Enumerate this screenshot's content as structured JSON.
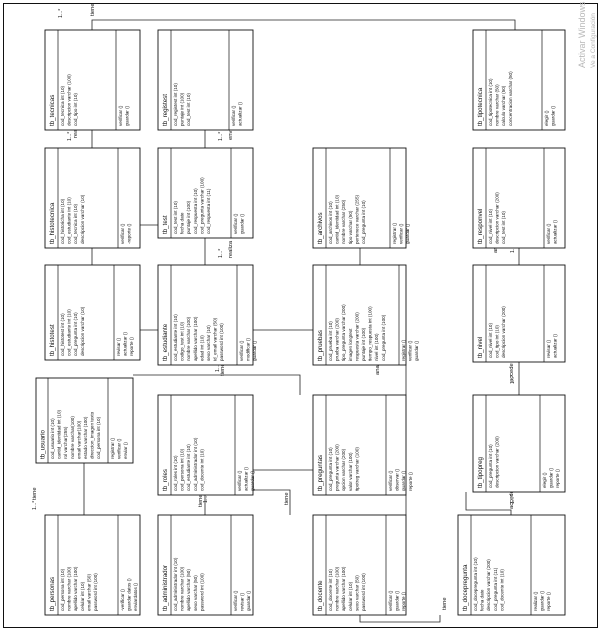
{
  "watermark": {
    "line1": "Activar Windows",
    "line2": "Ve a Configuración"
  },
  "tables": [
    {
      "name": "tb_tecnicas",
      "attrs": [
        "cod_tecnica int (10)",
        "descripcion varchar (100)",
        "cod_tipo int (10)"
      ],
      "methods": [
        "verificar ()",
        "guardar ()"
      ]
    },
    {
      "name": "tb_registest",
      "attrs": [
        "cod_registest int (10)",
        "puntaje int (100)",
        "cod_test int (10)"
      ],
      "methods": [
        "verificar ()",
        "actualizar ()"
      ]
    },
    {
      "name": "tb_tipotecnica",
      "attrs": [
        "cod_tipotecnica int (10)",
        "nombre varchar (50)",
        "calculo varchar (50)",
        "concentracion varchar (50)"
      ],
      "methods": [
        "elegir ()",
        "guardar ()"
      ]
    },
    {
      "name": "tb_histotecnica",
      "attrs": [
        "cod_historicha int (10)",
        "cod_estudiante int (10)",
        "cod_tecnica int (10)",
        "descripcion varchar (10)"
      ],
      "methods": [
        "verificar ()",
        "-reporte ()"
      ]
    },
    {
      "name": "tb_test",
      "attrs": [
        "cod_test int (10)",
        "fecha date",
        "puntaje int (100)",
        "cod_respuesta int (10)",
        "cod_pregunta varchar (100)",
        "cod_respuesta int (11)"
      ],
      "methods": [
        "verificar ()",
        "guardar ()"
      ]
    },
    {
      "name": "tb_archivos",
      "attrs": [
        "cod_archivos int (10)",
        "cantid_identidad int (10)",
        "nombre varchar (250)",
        "tipo varchar (50)",
        "pertenece varchar (255)",
        "cod_pregunta int (10)"
      ],
      "methods": [
        "registrar ()",
        "verificar ()",
        "guardar ()"
      ]
    },
    {
      "name": "tb_responvel",
      "attrs": [
        "cod_nivel int (10)",
        "descripcion varchar (200)",
        "cod_test int (10)"
      ],
      "methods": [
        "verificar ()",
        "actualizar ()"
      ]
    },
    {
      "name": "tb_histotest",
      "attrs": [
        "cod_histotest int (10)",
        "cod_estudiante int (10)",
        "cod_pregunta int (10)",
        "descripcion varchar (10)"
      ],
      "methods": [
        "revisar ()",
        "actualizar ()",
        "reporte ()"
      ]
    },
    {
      "name": "tb_estudiante",
      "attrs": [
        "cod_estudiante int (10)",
        "codigo_test int (10)",
        "nombre varchar (100)",
        "apellido varchar (100)",
        "edad int (10)",
        "sexo varchar (10)",
        "id_email varchar (50)",
        "password int (100)"
      ],
      "methods": [
        "verificar ()",
        "modificar ()",
        "guardar ()"
      ]
    },
    {
      "name": "tb_pruebas",
      "attrs": [
        "cod_prueba int (10)",
        "prueba varchar (200)",
        "tipo_pregunta varchar (200)",
        "imagen longtext",
        "respuesta varchar (200)",
        "puntaje int (100)",
        "tiempo_respuesta int (100)",
        "nivel int (100)",
        "cod_pregunta int (100)"
      ],
      "methods": [
        "registrar ()",
        "verificar ()",
        "guardar ()"
      ]
    },
    {
      "name": "tb_nivel",
      "attrs": [
        "cod_nivel int (10)",
        "cod_tipo int (10)",
        "descripcion varchar (200)"
      ],
      "methods": [
        "revisar ()",
        "actualizar ()"
      ]
    },
    {
      "name": "tb_usuario",
      "attrs": [
        "cod_usuario int (10)",
        "cantid_identidad int (10)",
        "rol varchar(255)",
        "nombre varchar(100)",
        "email varchar(100)",
        "estado varchar (100)",
        "direccion_imagen texto",
        "cod_persona int (10)"
      ],
      "methods": [
        "registrar ()",
        "verificar ()",
        "enviar ()"
      ]
    },
    {
      "name": "tb_roles",
      "attrs": [
        "cod_roles int (10)",
        "cod_persona int (10)",
        "cod_estudiante int (10)",
        "cod_administrador int (10)",
        "cod_docente int (10)"
      ],
      "methods": [
        "verificar ()",
        "actualizar ()",
        "guardar ()"
      ]
    },
    {
      "name": "tb_preguntas",
      "attrs": [
        "cod_pregunta int (10)",
        "pregunta varchar (200)",
        "opcion varchar (200)",
        "valor varchar (100)",
        "tipotreg varchar (100)"
      ],
      "methods": [
        "verificar ()",
        "observar ()",
        "guardar ()",
        "reporte ()"
      ]
    },
    {
      "name": "tb_tipopreg",
      "attrs": [
        "cod_pregunta int (10)",
        "descripcion varchar (200)"
      ],
      "methods": [
        "elegir ()",
        "guardar ()",
        "reporte ()"
      ]
    },
    {
      "name": "tb_personas",
      "attrs": [
        "cod_persona int (10)",
        "nombre varchar (100)",
        "apellido varchar (100)",
        "celular int (10)",
        "email varchar (50)",
        "password int (100)"
      ],
      "methods": [
        "-verificar ()",
        "guardar datos ()",
        "enviardatos ()"
      ]
    },
    {
      "name": "tb_administrador",
      "attrs": [
        "cod_administrador int (10)",
        "nombre varchar (100)",
        "apellido varchar (50)",
        "sexo varchar (50)",
        "password int (100)"
      ],
      "methods": [
        "verificar ()",
        "revisar ()",
        "guardar ()"
      ]
    },
    {
      "name": "tb_docente",
      "attrs": [
        "cod_docente int (10)",
        "nombre varchar (100)",
        "apellido varchar (100)",
        "celular int (10)",
        "sexo varchar (50)",
        "password int (100)"
      ],
      "methods": [
        "verificar ()",
        "guardar ()",
        "reporte ()"
      ]
    },
    {
      "name": "tb_docepregunta",
      "attrs": [
        "cod_docepregunta int (10)",
        "fecha date",
        "descripcion varchar (200)",
        "cod_pregunta int (11)",
        "cod_docente int (10)"
      ],
      "methods": [
        "realizar ()",
        "guardar ()",
        "reporte ()"
      ]
    }
  ],
  "relations": [
    {
      "label": "tiene",
      "mult": "1...*"
    },
    {
      "label": "realiza",
      "mult": "1...*"
    },
    {
      "label": "envia",
      "mult": "1...*"
    },
    {
      "label": "enviar",
      "mult": ""
    },
    {
      "label": "realiza",
      "mult": "1...*"
    },
    {
      "label": "tiene",
      "mult": "1...*"
    },
    {
      "label": "tiene",
      "mult": ""
    },
    {
      "label": "analiza",
      "mult": "1...*"
    },
    {
      "label": "analiza",
      "mult": ""
    },
    {
      "label": "accede",
      "mult": "1...*"
    },
    {
      "label": "tiene",
      "mult": "1...*"
    },
    {
      "label": "tiene",
      "mult": ""
    },
    {
      "label": "accede",
      "mult": "1...*"
    },
    {
      "label": "tiene",
      "mult": "1...*"
    },
    {
      "label": "tiene",
      "mult": "1...*"
    },
    {
      "label": "tiene",
      "mult": ""
    }
  ]
}
